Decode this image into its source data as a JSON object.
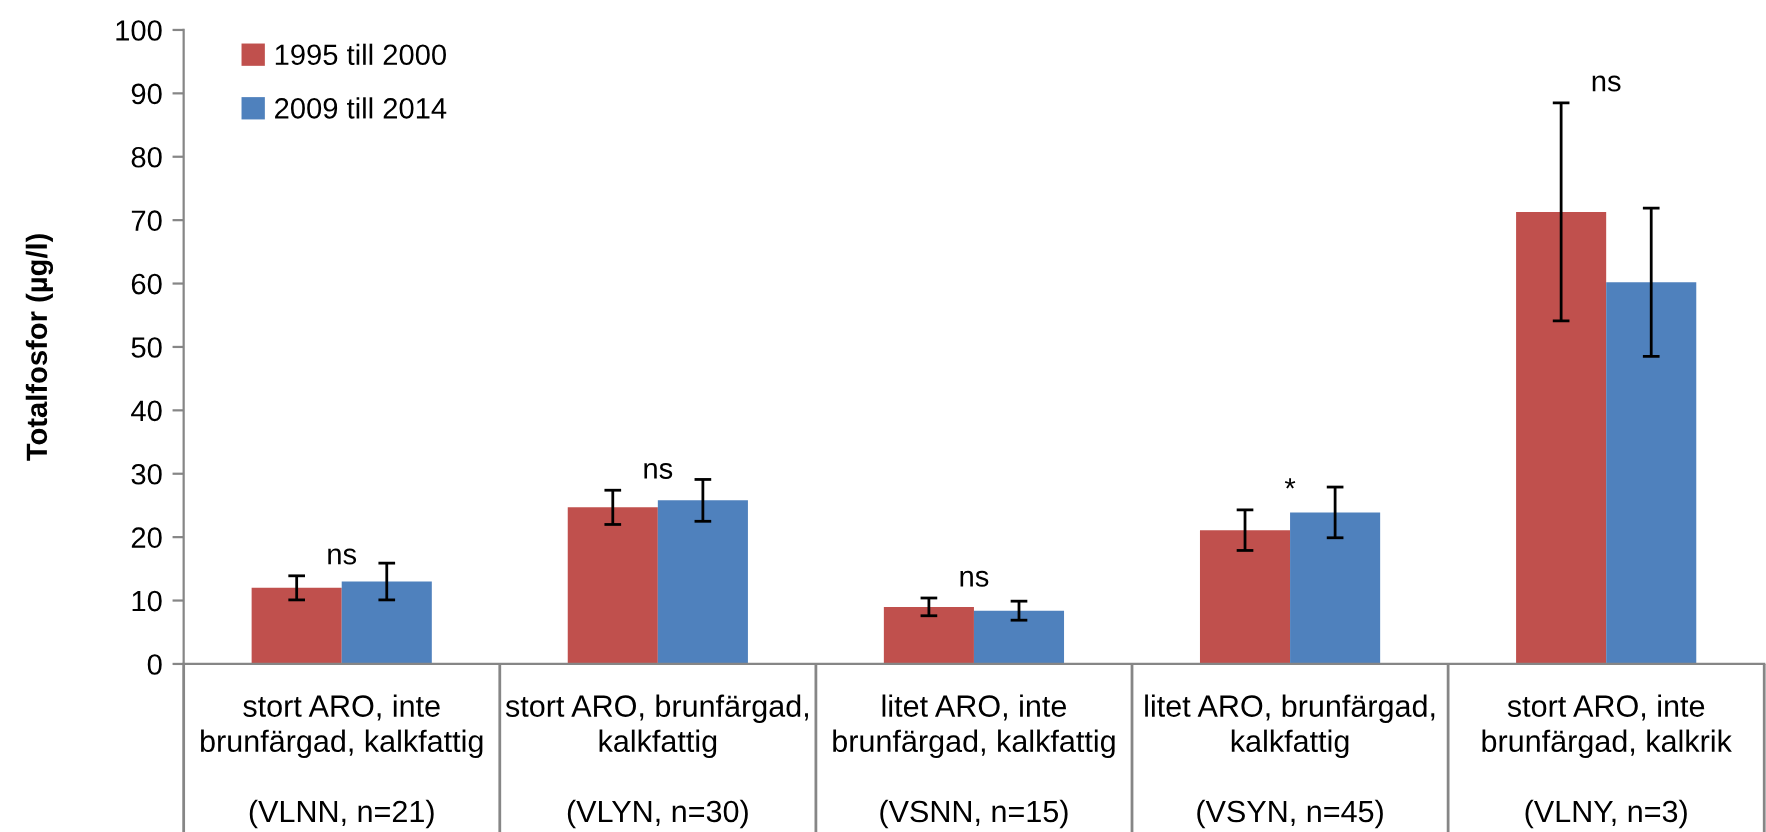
{
  "chart_data": {
    "type": "bar",
    "ylabel": "Totalfosfor (µg/l)",
    "categories": [
      "stort ARO, inte\nbrunfärgad, kalkfattig\n\n(VLNN, n=21)",
      "stort ARO, brunfärgad,\nkalkfattig\n\n(VLYN, n=30)",
      "litet ARO, inte\nbrunfärgad, kalkfattig\n\n(VSNN, n=15)",
      "litet ARO, brunfärgad,\nkalkfattig\n\n(VSYN, n=45)",
      "stort ARO, inte\nbrunfärgad, kalkrik\n\n(VLNY, n=3)"
    ],
    "series": [
      {
        "name": "1995 till 2000",
        "color": "#c0504d",
        "values": [
          12,
          24.7,
          9,
          21.1,
          71.3
        ],
        "errors": [
          1.9,
          2.7,
          1.4,
          3.2,
          17.2
        ]
      },
      {
        "name": "2009 till 2014",
        "color": "#4f81bd",
        "values": [
          13,
          25.8,
          8.4,
          23.9,
          60.2
        ],
        "errors": [
          2.9,
          3.3,
          1.5,
          4,
          11.7
        ]
      }
    ],
    "ylim": [
      0,
      100
    ],
    "yticks": [
      0,
      10,
      20,
      30,
      40,
      50,
      60,
      70,
      80,
      90,
      100
    ],
    "annotations": [
      "ns",
      "ns",
      "ns",
      "*",
      "ns"
    ],
    "legend": "top left",
    "grid": false
  }
}
